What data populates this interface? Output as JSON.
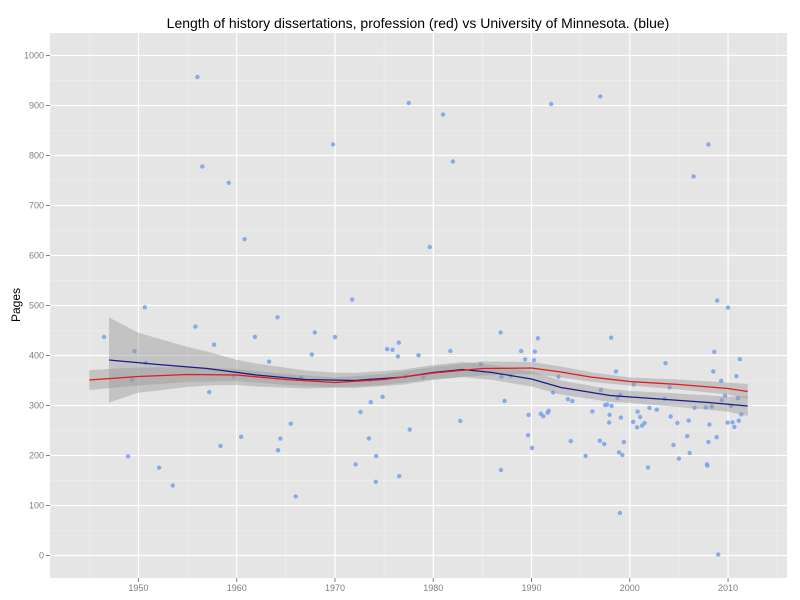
{
  "chart_data": {
    "type": "scatter",
    "title": "Length of history dissertations, profession (red) vs University of Minnesota. (blue)",
    "xlabel": "",
    "ylabel": "Pages",
    "xlim": [
      1941,
      2016
    ],
    "ylim": [
      -45,
      1045
    ],
    "x_ticks": [
      1950,
      1960,
      1970,
      1980,
      1990,
      2000,
      2010
    ],
    "y_ticks": [
      0,
      100,
      200,
      300,
      400,
      500,
      600,
      700,
      800,
      900,
      1000
    ],
    "grid": true,
    "legend": "none",
    "colors": {
      "panel": "#e5e5e5",
      "grid_major": "#ffffff",
      "grid_minor": "#f2f2f2",
      "points": "#7ba3ea",
      "profession": "#e41a1c",
      "minnesota": "#1a1a8c",
      "band": "#999999"
    },
    "profession_smooth": [
      [
        1945,
        351
      ],
      [
        1950,
        358
      ],
      [
        1955,
        362
      ],
      [
        1960,
        361
      ],
      [
        1965,
        352
      ],
      [
        1970,
        346
      ],
      [
        1975,
        352
      ],
      [
        1980,
        365
      ],
      [
        1985,
        374
      ],
      [
        1990,
        375
      ],
      [
        1993,
        367
      ],
      [
        1996,
        357
      ],
      [
        2000,
        348
      ],
      [
        2005,
        342
      ],
      [
        2010,
        334
      ],
      [
        2012,
        328
      ]
    ],
    "minnesota_smooth": [
      [
        1947,
        391
      ],
      [
        1952,
        382
      ],
      [
        1957,
        374
      ],
      [
        1962,
        361
      ],
      [
        1967,
        352
      ],
      [
        1972,
        350
      ],
      [
        1977,
        357
      ],
      [
        1980,
        366
      ],
      [
        1983,
        372
      ],
      [
        1986,
        366
      ],
      [
        1990,
        353
      ],
      [
        1993,
        336
      ],
      [
        1998,
        320
      ],
      [
        2003,
        313
      ],
      [
        2008,
        306
      ],
      [
        2012,
        299
      ]
    ],
    "band_half_width": [
      [
        1945,
        20
      ],
      [
        1950,
        18
      ],
      [
        1955,
        15
      ],
      [
        1960,
        12
      ],
      [
        1970,
        10
      ],
      [
        1980,
        12
      ],
      [
        1985,
        14
      ],
      [
        1990,
        12
      ],
      [
        2000,
        8
      ],
      [
        2010,
        12
      ],
      [
        2012,
        15
      ]
    ],
    "minnesota_band_half_width": [
      [
        1947,
        85
      ],
      [
        1950,
        60
      ],
      [
        1955,
        40
      ],
      [
        1960,
        25
      ],
      [
        1970,
        15
      ],
      [
        1980,
        15
      ],
      [
        1990,
        15
      ],
      [
        2000,
        12
      ],
      [
        2010,
        15
      ],
      [
        2012,
        20
      ]
    ],
    "highlighted_points": [
      [
        1946.5,
        437
      ],
      [
        1956,
        957
      ],
      [
        1956.5,
        778
      ],
      [
        1969.8,
        822
      ],
      [
        1977.5,
        905
      ],
      [
        1981,
        882
      ],
      [
        1982,
        788
      ],
      [
        1992,
        903
      ],
      [
        1997,
        918
      ],
      [
        2008,
        822
      ],
      [
        2006.5,
        758
      ],
      [
        2009,
        2
      ],
      [
        1999,
        85
      ],
      [
        1953.5,
        140
      ],
      [
        1966,
        118
      ]
    ]
  }
}
